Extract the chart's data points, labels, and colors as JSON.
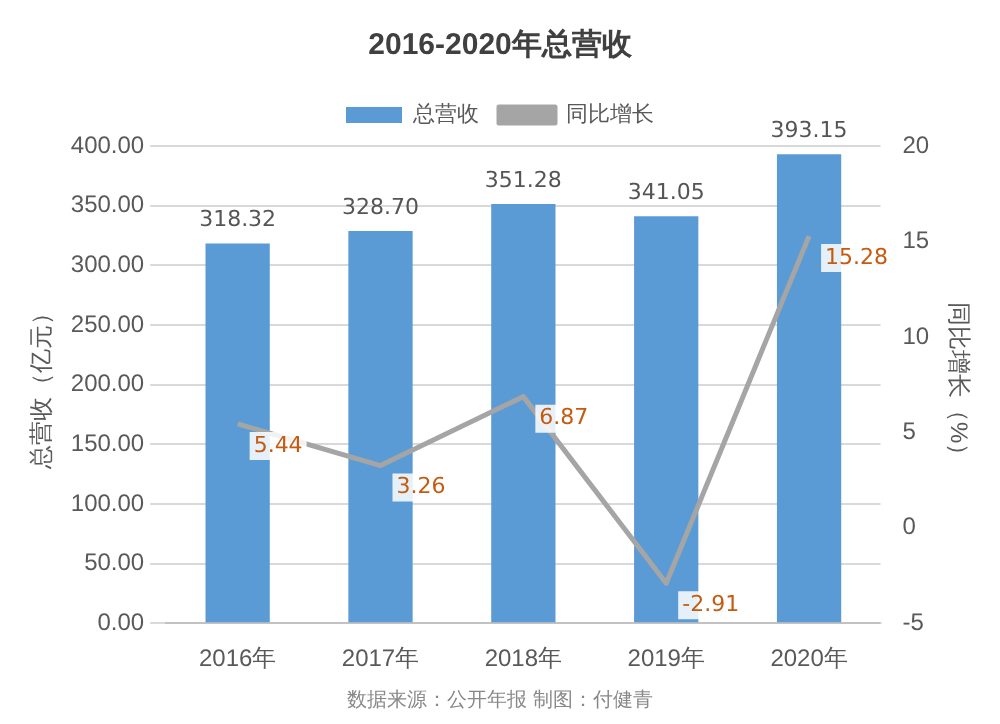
{
  "chart_data": {
    "type": "bar",
    "title": "2016-2020年总营收",
    "categories": [
      "2016年",
      "2017年",
      "2018年",
      "2019年",
      "2020年"
    ],
    "series": [
      {
        "name": "总营收",
        "color": "#5b9bd5",
        "values": [
          318.32,
          328.7,
          351.28,
          341.05,
          393.15
        ],
        "value_labels": [
          "318.32",
          "328.70",
          "351.28",
          "341.05",
          "393.15"
        ]
      },
      {
        "name": "同比增长",
        "type": "line",
        "axis": "y2",
        "color": "#a5a5a5",
        "values": [
          5.44,
          3.26,
          6.87,
          -2.91,
          15.28
        ],
        "value_labels": [
          "5.44",
          "3.26",
          "6.87",
          "-2.91",
          "15.28"
        ]
      }
    ],
    "ylabel": "总营收（亿元）",
    "y2label": "同比增长（%）",
    "ylim": [
      0,
      400
    ],
    "yticks": [
      {
        "value": 0,
        "label": "0.00"
      },
      {
        "value": 50,
        "label": "50.00"
      },
      {
        "value": 100,
        "label": "100.00"
      },
      {
        "value": 150,
        "label": "150.00"
      },
      {
        "value": 200,
        "label": "200.00"
      },
      {
        "value": 250,
        "label": "250.00"
      },
      {
        "value": 300,
        "label": "300.00"
      },
      {
        "value": 350,
        "label": "350.00"
      },
      {
        "value": 400,
        "label": "400.00"
      }
    ],
    "y2lim": [
      -5,
      20
    ],
    "y2ticks": [
      -5,
      0,
      5,
      10,
      15,
      20
    ],
    "grid": "y",
    "legend": "top",
    "marker": "none",
    "line_style": "solid",
    "annotations": [
      "数据来源：公开年报 制图：付健青"
    ]
  }
}
